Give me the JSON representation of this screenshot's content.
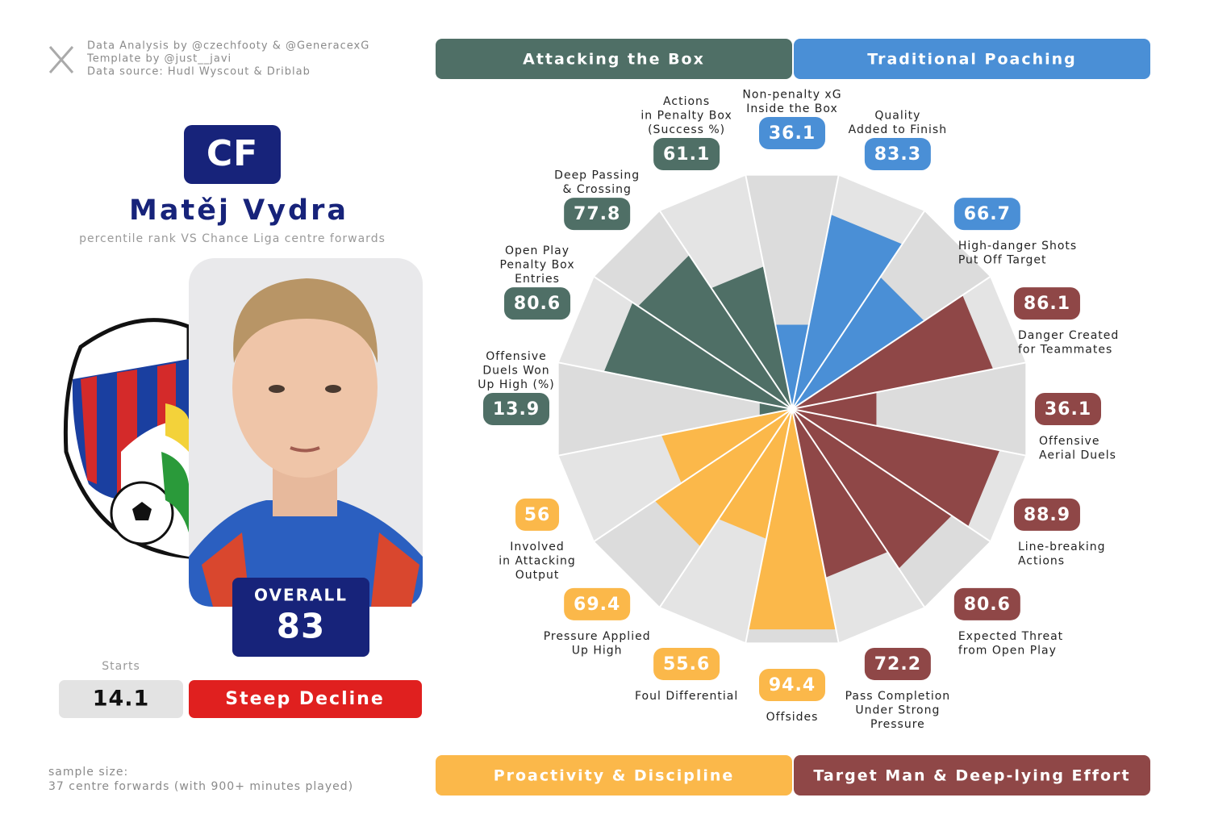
{
  "credits": [
    "Data Analysis by @czechfooty & @GeneracexG",
    "Template by @just__javi",
    "Data source: Hudl Wyscout & Driblab"
  ],
  "player": {
    "position": "CF",
    "name": "Matěj Vydra",
    "subtitle": "percentile rank VS Chance Liga centre forwards",
    "overall_label": "OVERALL",
    "overall": 83,
    "starts_label": "Starts",
    "starts": 14.1,
    "trend": "Steep Decline"
  },
  "sample": [
    "sample size:",
    "37 centre forwards (with 900+ minutes played)"
  ],
  "chart_data": {
    "type": "pizza",
    "ylim": [
      0,
      100
    ],
    "series": [
      {
        "name": "Attacking the Box",
        "color": "#4f6f66",
        "categories": [
          "Offensive\nDuels Won\nUp High (%)",
          "Open Play\nPenalty Box\nEntries",
          "Deep Passing\n& Crossing",
          "Actions\nin Penalty Box\n(Success %)"
        ],
        "values": [
          13.9,
          80.6,
          77.8,
          61.1
        ]
      },
      {
        "name": "Traditional Poaching",
        "color": "#4a8fd6",
        "categories": [
          "Non-penalty xG\nInside the Box",
          "Quality\nAdded to Finish",
          "High-danger Shots\nPut Off Target"
        ],
        "values": [
          36.1,
          83.3,
          66.7
        ]
      },
      {
        "name": "Target Man & Deep-lying Effort",
        "color": "#8f4747",
        "categories": [
          "Danger Created\nfor Teammates",
          "Offensive\nAerial Duels",
          "Line-breaking\nActions",
          "Expected Threat\nfrom Open Play",
          "Pass Completion\nUnder Strong\nPressure"
        ],
        "values": [
          86.1,
          36.1,
          88.9,
          80.6,
          72.2
        ]
      },
      {
        "name": "Proactivity & Discipline",
        "color": "#fbb84a",
        "categories": [
          "Offsides",
          "Foul Differential",
          "Pressure Applied\nUp High",
          "Involved\nin Attacking\nOutput"
        ],
        "values": [
          94.4,
          55.6,
          69.4,
          56
        ]
      }
    ]
  }
}
